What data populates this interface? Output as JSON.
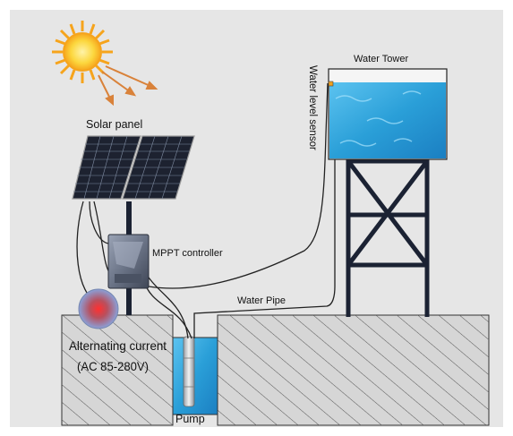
{
  "labels": {
    "solar_panel": "Solar panel",
    "water_tower": "Water Tower",
    "water_level_sensor": "Water  level sensor",
    "mppt_controller": "MPPT controller",
    "water_pipe": "Water Pipe",
    "ac_line1": "Alternating current",
    "ac_line2": "(AC 85-280V)",
    "pump": "Pump"
  },
  "colors": {
    "frame_bg": "#e6e6e6",
    "ground_fill": "#d6d6d6",
    "hatch": "#444444",
    "water": "#2a9fd8",
    "sun": "#f6b21c",
    "sun_ray_arrow": "#d9823a",
    "solar_cell": "#1d2230",
    "tower_steel": "#1b2233",
    "controller_body": "#6f7788",
    "ac_source": "#c54a6a"
  },
  "icons": [
    "sun-icon",
    "solar-panel-icon",
    "mppt-controller-icon",
    "ac-source-icon",
    "pump-icon",
    "water-tank-icon"
  ]
}
